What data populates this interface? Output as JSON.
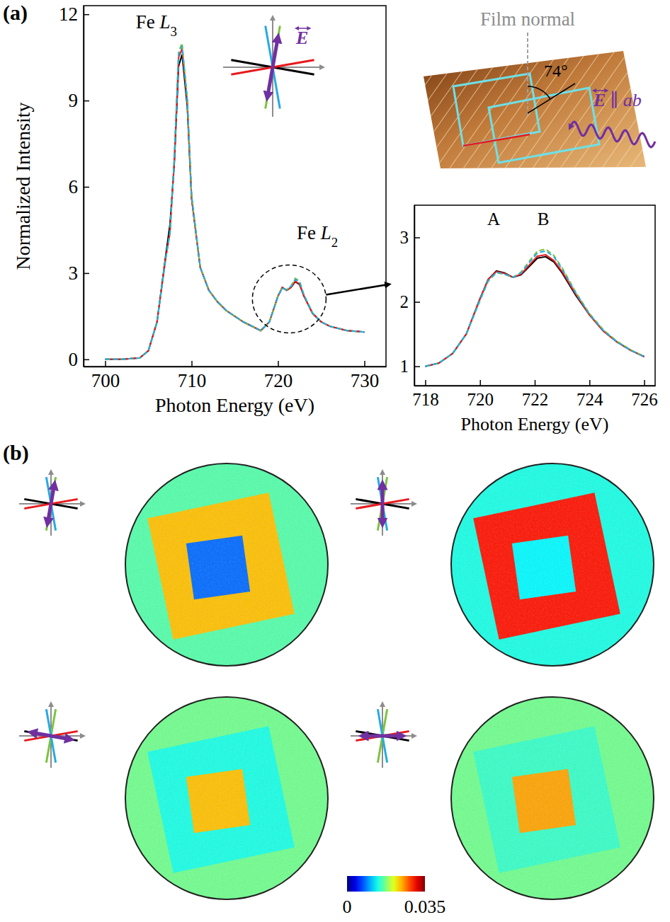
{
  "panel_labels": [
    "(a)",
    "(b)"
  ],
  "chart_data": [
    {
      "type": "line",
      "x": [
        700,
        702,
        704,
        705,
        706,
        707,
        707.5,
        708,
        708.5,
        708.9,
        709.5,
        710,
        711,
        712,
        713,
        714,
        716,
        718,
        719,
        720,
        720.5,
        721,
        721.5,
        722,
        722.5,
        723,
        724,
        725,
        726,
        728,
        730
      ],
      "series": [
        {
          "color": "#000000",
          "line_style": "solid",
          "values": [
            0,
            0,
            0.05,
            0.3,
            1.3,
            3.6,
            4.7,
            6.8,
            10.2,
            10.6,
            8.8,
            5.6,
            3.2,
            2.4,
            2.0,
            1.7,
            1.3,
            1.0,
            1.3,
            2.2,
            2.5,
            2.4,
            2.5,
            2.7,
            2.6,
            2.2,
            1.6,
            1.3,
            1.15,
            1.0,
            0.95
          ]
        },
        {
          "color": "#e8191c",
          "line_style": "solid",
          "values": [
            0,
            0,
            0.05,
            0.3,
            1.3,
            3.5,
            4.4,
            6.9,
            10.5,
            10.8,
            9.0,
            5.6,
            3.2,
            2.4,
            2.0,
            1.7,
            1.3,
            1.0,
            1.3,
            2.2,
            2.5,
            2.4,
            2.5,
            2.72,
            2.62,
            2.2,
            1.6,
            1.3,
            1.15,
            1.0,
            0.95
          ]
        },
        {
          "color": "#7dc242",
          "line_style": "dashed",
          "values": [
            0,
            0,
            0.05,
            0.3,
            1.3,
            3.5,
            4.4,
            7.0,
            10.7,
            11.0,
            9.1,
            5.7,
            3.2,
            2.4,
            2.0,
            1.7,
            1.3,
            1.0,
            1.3,
            2.2,
            2.48,
            2.42,
            2.55,
            2.82,
            2.72,
            2.25,
            1.62,
            1.3,
            1.15,
            1.0,
            0.95
          ]
        },
        {
          "color": "#27aae1",
          "line_style": "dashed",
          "values": [
            0,
            0,
            0.05,
            0.3,
            1.3,
            3.5,
            4.4,
            7.0,
            10.6,
            10.9,
            9.0,
            5.7,
            3.2,
            2.4,
            2.0,
            1.7,
            1.3,
            1.0,
            1.3,
            2.2,
            2.48,
            2.42,
            2.54,
            2.78,
            2.69,
            2.24,
            1.61,
            1.3,
            1.15,
            1.0,
            0.95
          ]
        }
      ],
      "xlim": [
        697.5,
        732.5
      ],
      "ylim": [
        -0.25,
        12.3
      ],
      "xticks": [
        700,
        710,
        720,
        730
      ],
      "yticks": [
        0,
        3,
        6,
        9,
        12
      ],
      "x_label": "Photon Energy (eV)",
      "y_label": "Normalized Intensity",
      "annotations": [
        {
          "text": "Fe L",
          "subscript": "3"
        },
        {
          "text": "Fe L",
          "subscript": "2"
        }
      ]
    },
    {
      "type": "line",
      "x": [
        718,
        718.5,
        719,
        719.5,
        720,
        720.3,
        720.6,
        720.9,
        721.2,
        721.5,
        721.8,
        722.1,
        722.4,
        722.7,
        723,
        723.5,
        724,
        724.5,
        725,
        725.5,
        726
      ],
      "series": [
        {
          "color": "#000000",
          "line_style": "solid",
          "values": [
            1.0,
            1.05,
            1.2,
            1.5,
            2.05,
            2.35,
            2.48,
            2.45,
            2.38,
            2.42,
            2.55,
            2.68,
            2.7,
            2.62,
            2.45,
            2.1,
            1.8,
            1.55,
            1.38,
            1.25,
            1.15
          ]
        },
        {
          "color": "#e8191c",
          "line_style": "solid",
          "values": [
            1.0,
            1.05,
            1.2,
            1.5,
            2.05,
            2.35,
            2.47,
            2.44,
            2.38,
            2.43,
            2.57,
            2.71,
            2.73,
            2.64,
            2.47,
            2.12,
            1.8,
            1.55,
            1.38,
            1.25,
            1.15
          ]
        },
        {
          "color": "#7dc242",
          "line_style": "dashed",
          "values": [
            1.0,
            1.05,
            1.2,
            1.5,
            2.02,
            2.32,
            2.45,
            2.43,
            2.38,
            2.46,
            2.63,
            2.79,
            2.82,
            2.72,
            2.53,
            2.15,
            1.82,
            1.57,
            1.39,
            1.26,
            1.15
          ]
        },
        {
          "color": "#27aae1",
          "line_style": "dashed",
          "values": [
            1.0,
            1.05,
            1.2,
            1.5,
            2.03,
            2.33,
            2.46,
            2.43,
            2.38,
            2.45,
            2.61,
            2.76,
            2.79,
            2.7,
            2.51,
            2.14,
            1.81,
            1.56,
            1.38,
            1.25,
            1.15
          ]
        }
      ],
      "xlim": [
        717.6,
        726.4
      ],
      "ylim": [
        0.7,
        3.5
      ],
      "xticks": [
        718,
        720,
        722,
        724,
        726
      ],
      "yticks": [
        1,
        2,
        3
      ],
      "x_label": "Photon Energy (eV)",
      "annotations": [
        {
          "text": "A"
        },
        {
          "text": "B"
        }
      ]
    }
  ],
  "schematic": {
    "field_label": "E",
    "film_normal": "Film normal",
    "angle": "74°",
    "polarization": {
      "field": "E",
      "relation": "∥",
      "plane": "ab"
    }
  },
  "peem_maps": {
    "colorbar": {
      "range": [
        0,
        0.035
      ],
      "ticks": [
        0,
        0.035
      ]
    },
    "maps": [
      {
        "background": 0.016,
        "frame": 0.024,
        "center": 0.008
      },
      {
        "background": 0.014,
        "frame": 0.03,
        "center": 0.013
      },
      {
        "background": 0.017,
        "frame": 0.014,
        "center": 0.024
      },
      {
        "background": 0.017,
        "frame": 0.015,
        "center": 0.025
      }
    ]
  }
}
